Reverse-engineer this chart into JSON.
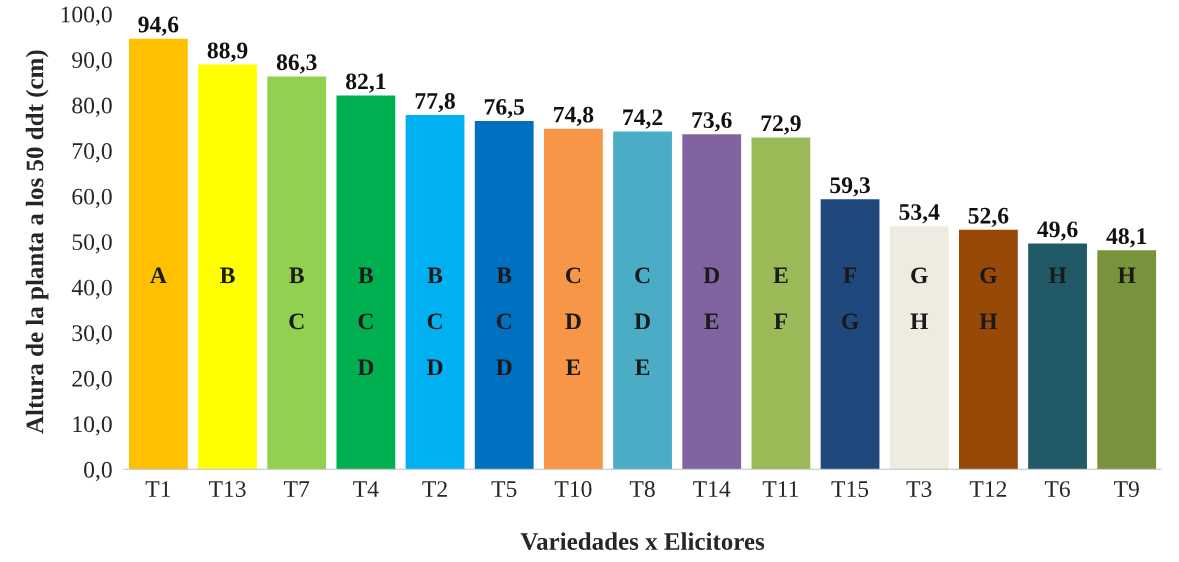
{
  "chart_data": {
    "type": "bar",
    "xlabel": "Variedades x Elicitores",
    "ylabel": "Altura de la planta a los 50 ddt (cm)",
    "categories": [
      "T1",
      "T13",
      "T7",
      "T4",
      "T2",
      "T5",
      "T10",
      "T8",
      "T14",
      "T11",
      "T15",
      "T3",
      "T12",
      "T6",
      "T9"
    ],
    "values": [
      94.6,
      88.9,
      86.3,
      82.1,
      77.8,
      76.5,
      74.8,
      74.2,
      73.6,
      72.9,
      59.3,
      53.4,
      52.6,
      49.6,
      48.1
    ],
    "value_labels": [
      "94,6",
      "88,9",
      "86,3",
      "82,1",
      "77,8",
      "76,5",
      "74,8",
      "74,2",
      "73,6",
      "72,9",
      "59,3",
      "53,4",
      "52,6",
      "49,6",
      "48,1"
    ],
    "colors": [
      "#ffc000",
      "#ffff00",
      "#92d050",
      "#00b050",
      "#00b0f0",
      "#0070c0",
      "#f79646",
      "#4bacc6",
      "#8064a2",
      "#9bbb59",
      "#1f497d",
      "#eeece1",
      "#984807",
      "#215967",
      "#77933c"
    ],
    "ylim": [
      0,
      100
    ],
    "yticks": [
      {
        "value": 0,
        "label": "0,0"
      },
      {
        "value": 10,
        "label": "10,0"
      },
      {
        "value": 20,
        "label": "20,0"
      },
      {
        "value": 30,
        "label": "30,0"
      },
      {
        "value": 40,
        "label": "40,0"
      },
      {
        "value": 50,
        "label": "50,0"
      },
      {
        "value": 60,
        "label": "60,0"
      },
      {
        "value": 70,
        "label": "70,0"
      },
      {
        "value": 80,
        "label": "80,0"
      },
      {
        "value": 90,
        "label": "90,0"
      },
      {
        "value": 100,
        "label": "100,0"
      }
    ],
    "grid": false,
    "legend": false,
    "annotations": [
      "A",
      "B",
      "B\nC",
      "B\nC\nD",
      "B\nC\nD",
      "B\nC\nD",
      "C\nD\nE",
      "C\nD\nE",
      "D\nE",
      "E\nF",
      "F\nG",
      "G\nH",
      "G\nH",
      "H",
      "H"
    ]
  }
}
